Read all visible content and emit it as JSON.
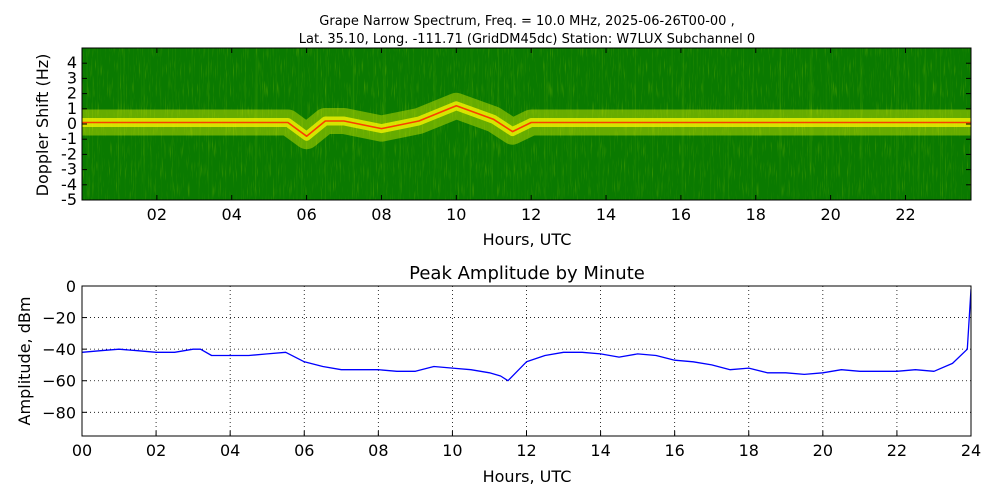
{
  "chart_data": [
    {
      "type": "heatmap",
      "title_line1": "Grape Narrow Spectrum, Freq. = 10.0 MHz, 2025-06-26T00-00 ,",
      "title_line2": "Lat.  35.10, Long. -111.71 (GridDM45dc) Station: W7LUX Subchannel 0",
      "xlabel": "Hours, UTC",
      "ylabel": "Doppler Shift (Hz)",
      "xlim": [
        0,
        23.75
      ],
      "ylim": [
        -5,
        5
      ],
      "x_ticks": [
        2,
        4,
        6,
        8,
        10,
        12,
        14,
        16,
        18,
        20,
        22
      ],
      "x_tick_labels": [
        "02",
        "04",
        "06",
        "08",
        "10",
        "12",
        "14",
        "16",
        "18",
        "20",
        "22"
      ],
      "y_ticks": [
        4,
        3,
        2,
        1,
        0,
        -1,
        -2,
        -3,
        -4,
        -5
      ],
      "y_tick_labels": [
        "4",
        "3",
        "2",
        "1",
        "0",
        "-1",
        "-2",
        "-3",
        "-4",
        "-5"
      ],
      "colors": {
        "background": "#0a7a00",
        "mid": "#d8e800",
        "high": "#f2f200",
        "peak": "#ff2200"
      },
      "doppler_center_trace": {
        "x_hours": [
          0,
          1,
          2,
          3,
          4,
          5,
          5.5,
          6,
          6.5,
          7,
          8,
          9,
          10,
          11,
          11.5,
          12,
          13,
          14,
          15,
          16,
          17,
          18,
          19,
          20,
          21,
          22,
          23,
          23.75
        ],
        "y_hz": [
          0.1,
          0.1,
          0.1,
          0.1,
          0.1,
          0.1,
          0.1,
          -0.8,
          0.2,
          0.2,
          -0.3,
          0.2,
          1.2,
          0.3,
          -0.5,
          0.1,
          0.1,
          0.1,
          0.1,
          0.1,
          0.1,
          0.1,
          0.1,
          0.1,
          0.1,
          0.1,
          0.1,
          0.1
        ]
      }
    },
    {
      "type": "line",
      "title": "Peak Amplitude by Minute",
      "xlabel": "Hours, UTC",
      "ylabel": "Amplitude, dBm",
      "xlim": [
        0,
        24
      ],
      "ylim": [
        -95,
        0
      ],
      "x_ticks": [
        0,
        2,
        4,
        6,
        8,
        10,
        12,
        14,
        16,
        18,
        20,
        22,
        24
      ],
      "x_tick_labels": [
        "00",
        "02",
        "04",
        "06",
        "08",
        "10",
        "12",
        "14",
        "16",
        "18",
        "20",
        "22",
        "24"
      ],
      "y_ticks": [
        0,
        -20,
        -40,
        -60,
        -80
      ],
      "y_tick_labels": [
        "0",
        "−20",
        "−40",
        "−60",
        "−80"
      ],
      "grid": true,
      "line_color": "#0000ff",
      "series": [
        {
          "x": [
            0,
            0.5,
            1,
            1.5,
            2,
            2.5,
            3,
            3.2,
            3.5,
            4,
            4.5,
            5,
            5.5,
            6,
            6.5,
            7,
            7.5,
            8,
            8.5,
            9,
            9.5,
            10,
            10.5,
            11,
            11.3,
            11.5,
            12,
            12.5,
            13,
            13.5,
            14,
            14.5,
            15,
            15.5,
            16,
            16.5,
            17,
            17.5,
            18,
            18.5,
            19,
            19.5,
            20,
            20.5,
            21,
            21.5,
            22,
            22.5,
            23,
            23.5,
            23.9,
            24
          ],
          "y": [
            -42,
            -41,
            -40,
            -41,
            -42,
            -42,
            -40,
            -40,
            -44,
            -44,
            -44,
            -43,
            -42,
            -48,
            -51,
            -53,
            -53,
            -53,
            -54,
            -54,
            -51,
            -52,
            -53,
            -55,
            -57,
            -60,
            -48,
            -44,
            -42,
            -42,
            -43,
            -45,
            -43,
            -44,
            -47,
            -48,
            -50,
            -53,
            -52,
            -55,
            -55,
            -56,
            -55,
            -53,
            -54,
            -54,
            -54,
            -53,
            -54,
            -49,
            -40,
            -2
          ]
        }
      ]
    }
  ]
}
